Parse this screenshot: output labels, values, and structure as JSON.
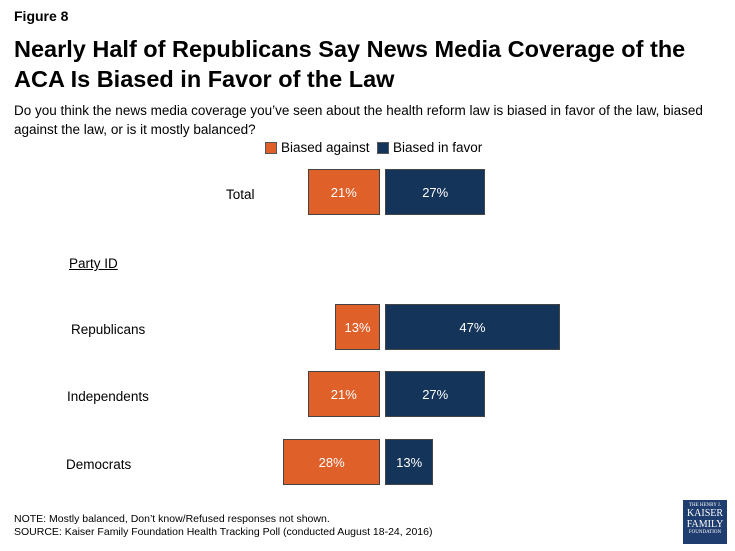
{
  "figure_label": "Figure 8",
  "title": "Nearly Half of Republicans Say News Media Coverage of the ACA Is Biased in Favor of the Law",
  "subtitle": "Do you think the news media coverage you’ve seen about the health reform law is biased in favor of the law, biased against the law, or is it mostly balanced?",
  "note": "NOTE: Mostly balanced, Don’t know/Refused responses not shown.",
  "source": "SOURCE: Kaiser Family Foundation Health Tracking Poll (conducted August 18-24, 2016)",
  "logo_text": "THE HENRY J. KAISER FAMILY FOUNDATION",
  "chart_data": {
    "type": "bar",
    "orientation": "diverging-horizontal",
    "group_header": "Party ID",
    "categories": [
      "Total",
      "Republicans",
      "Independents",
      "Democrats"
    ],
    "series": [
      {
        "name": "Biased against",
        "color": "#e0602a",
        "values": [
          21,
          13,
          21,
          28
        ],
        "labels": [
          "21%",
          "13%",
          "21%",
          "28%"
        ]
      },
      {
        "name": "Biased in favor",
        "color": "#14345a",
        "values": [
          27,
          47,
          27,
          13
        ],
        "labels": [
          "27%",
          "47%",
          "27%",
          "13%"
        ]
      }
    ],
    "legend": "top"
  }
}
